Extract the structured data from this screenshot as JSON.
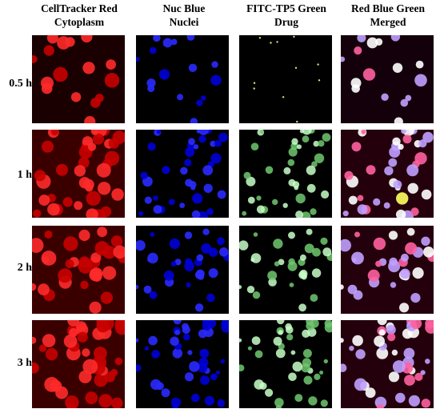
{
  "columns": [
    {
      "line1": "CellTracker Red",
      "line2": "Cytoplasm",
      "channel": "red",
      "color": "#ff1a1a"
    },
    {
      "line1": "Nuc Blue",
      "line2": "Nuclei",
      "channel": "blue",
      "color": "#1a1aff"
    },
    {
      "line1": "FITC-TP5 Green",
      "line2": "Drug",
      "channel": "green",
      "color": "#b8ffb8"
    },
    {
      "line1": "Red Blue Green",
      "line2": "Merged",
      "channel": "merged",
      "color": "#d8b8ff"
    }
  ],
  "rows": [
    {
      "label": "0.5 h"
    },
    {
      "label": "1 h"
    },
    {
      "label": "2 h"
    },
    {
      "label": "3 h"
    }
  ]
}
